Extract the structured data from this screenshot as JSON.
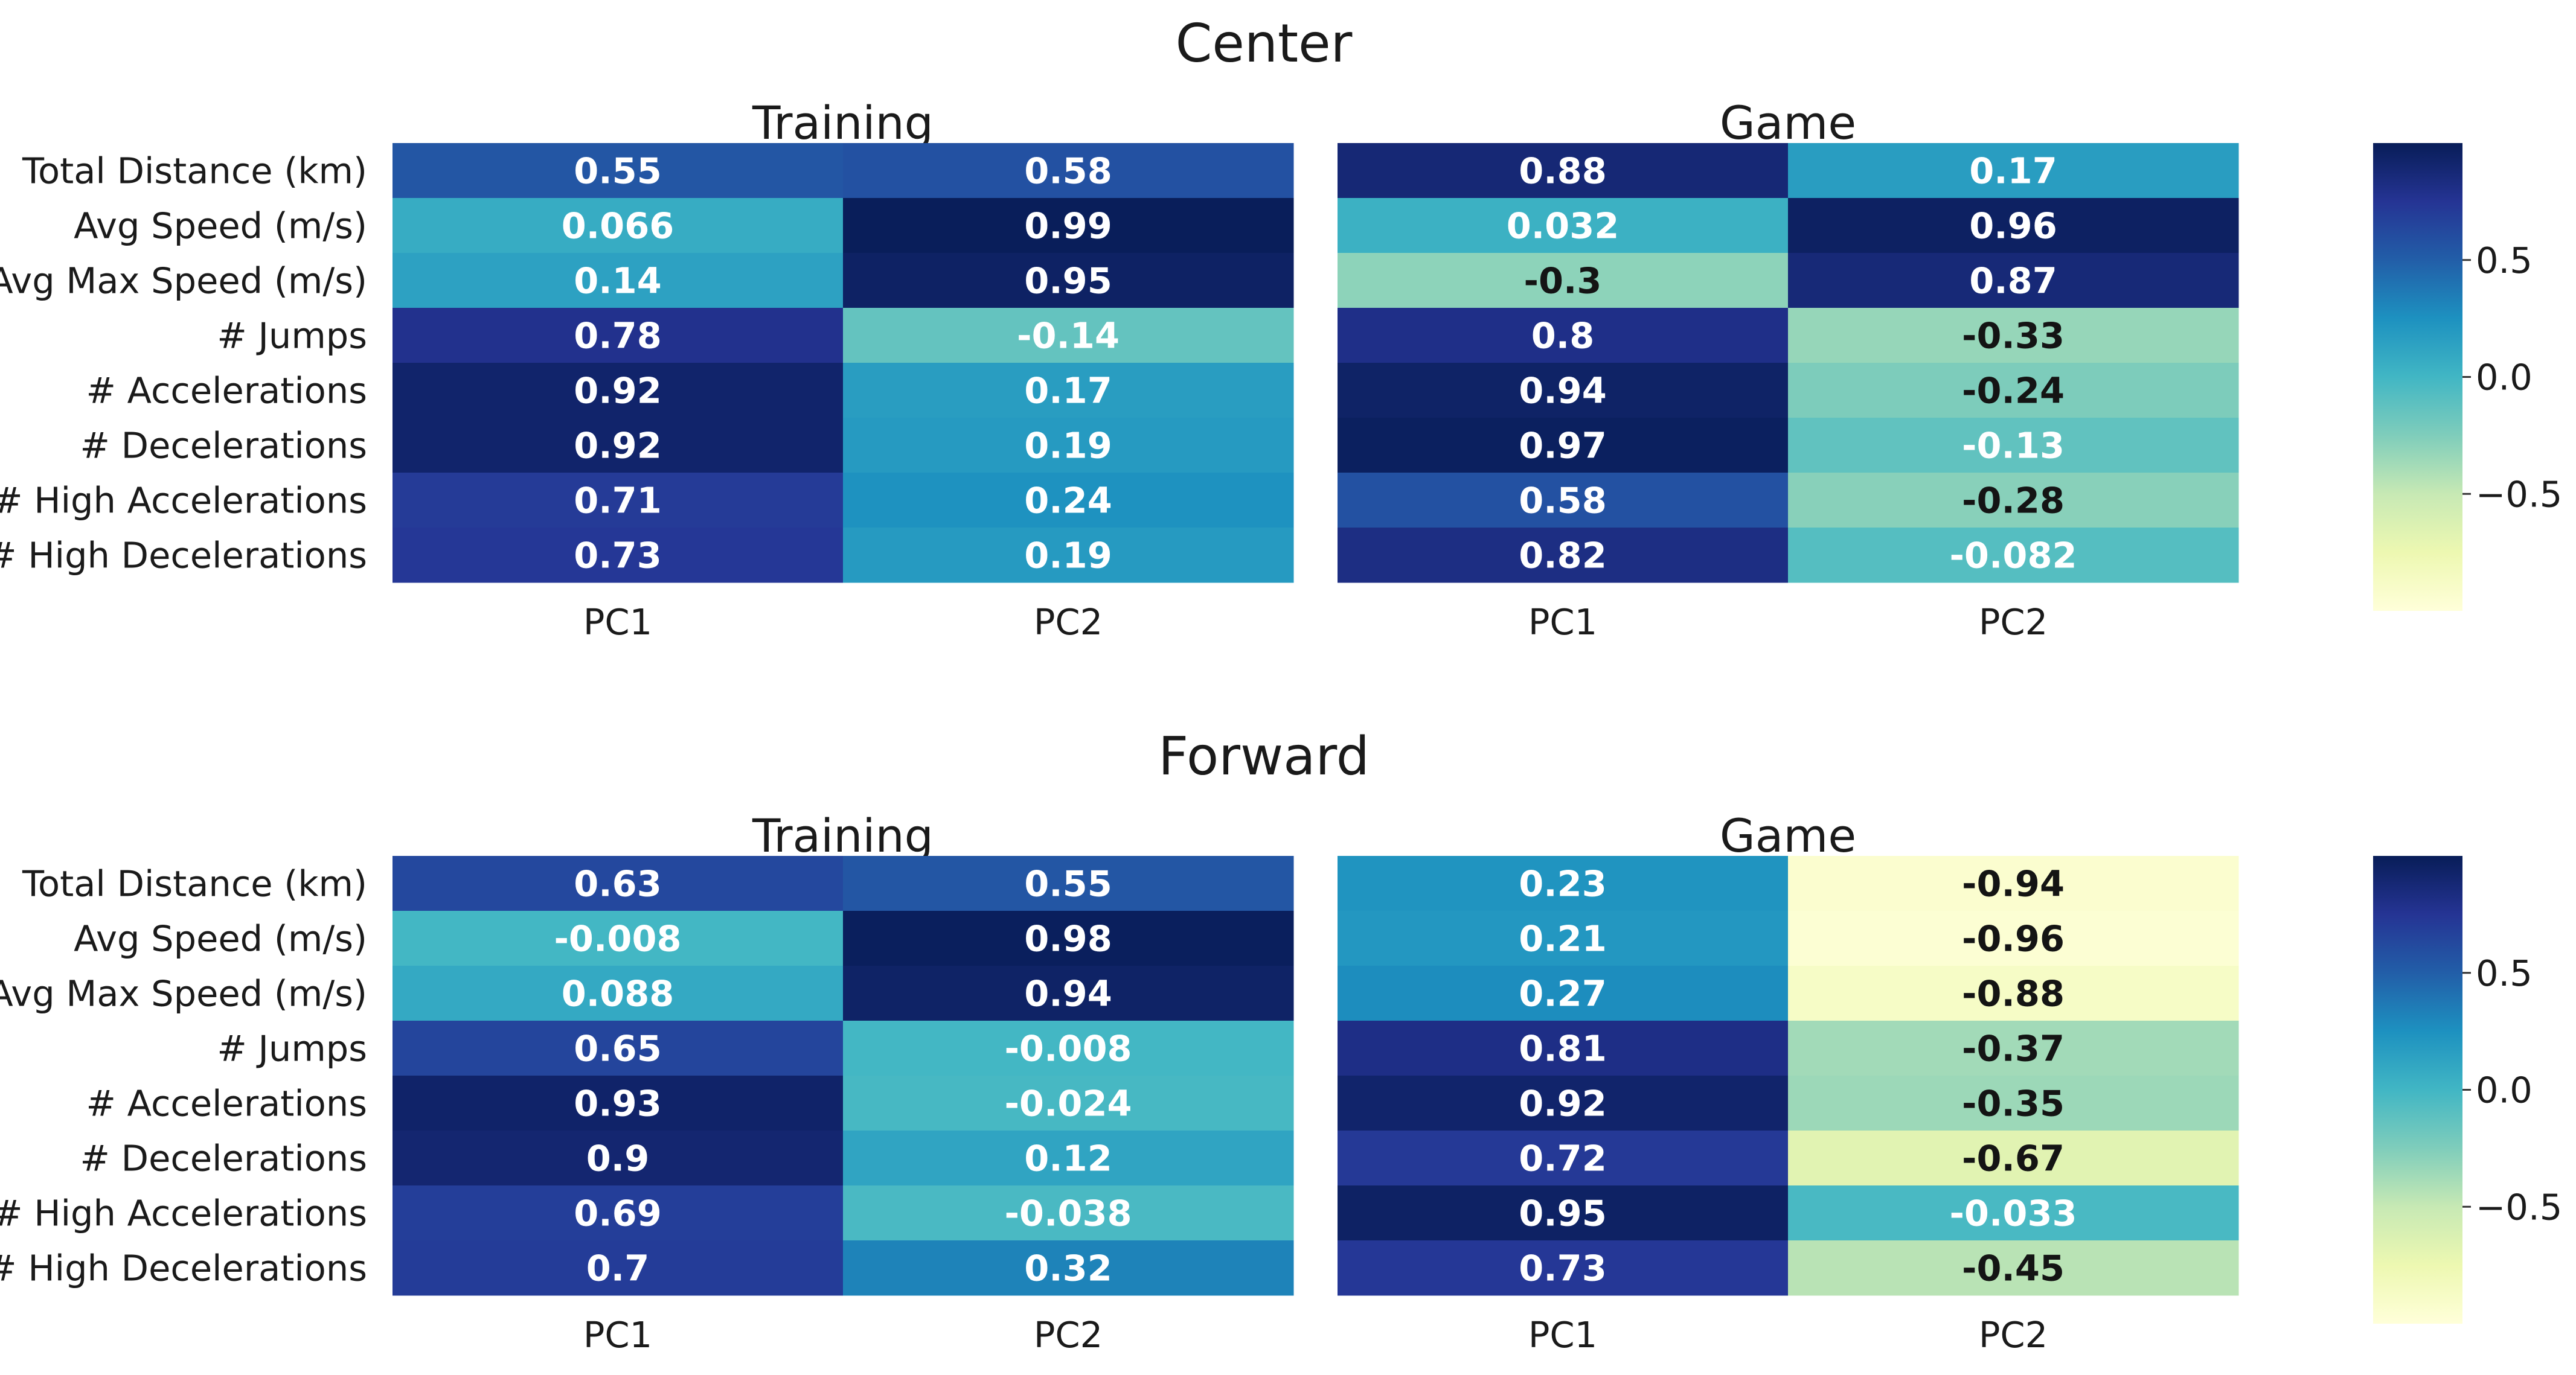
{
  "chart_data": {
    "type": "heatmap",
    "value_range": [
      -1,
      1
    ],
    "colormap": "YlGnBu",
    "colormap_stops": [
      "#ffffd9",
      "#edf8b1",
      "#c7e9b4",
      "#7fcdbb",
      "#41b6c4",
      "#1d91c0",
      "#225ea8",
      "#253494",
      "#081d58"
    ],
    "rows": [
      "Total Distance (km)",
      "Avg Speed (m/s)",
      "Avg Max Speed (m/s)",
      "# Jumps",
      "# Accelerations",
      "# Decelerations",
      "# High Accelerations",
      "# High Decelerations"
    ],
    "groups": [
      {
        "title": "Center",
        "colorbar_ticks": [
          {
            "value": 0.5,
            "label": "0.5"
          },
          {
            "value": 0.0,
            "label": "0.0"
          },
          {
            "value": -0.5,
            "label": "−0.5"
          }
        ],
        "panels": [
          {
            "title": "Training",
            "columns": [
              "PC1",
              "PC2"
            ],
            "values": [
              [
                0.55,
                0.58
              ],
              [
                0.066,
                0.99
              ],
              [
                0.14,
                0.95
              ],
              [
                0.78,
                -0.14
              ],
              [
                0.92,
                0.17
              ],
              [
                0.92,
                0.19
              ],
              [
                0.71,
                0.24
              ],
              [
                0.73,
                0.19
              ]
            ],
            "labels": [
              [
                "0.55",
                "0.58"
              ],
              [
                "0.066",
                "0.99"
              ],
              [
                "0.14",
                "0.95"
              ],
              [
                "0.78",
                "-0.14"
              ],
              [
                "0.92",
                "0.17"
              ],
              [
                "0.92",
                "0.19"
              ],
              [
                "0.71",
                "0.24"
              ],
              [
                "0.73",
                "0.19"
              ]
            ]
          },
          {
            "title": "Game",
            "columns": [
              "PC1",
              "PC2"
            ],
            "values": [
              [
                0.88,
                0.17
              ],
              [
                0.032,
                0.96
              ],
              [
                -0.3,
                0.87
              ],
              [
                0.8,
                -0.33
              ],
              [
                0.94,
                -0.24
              ],
              [
                0.97,
                -0.13
              ],
              [
                0.58,
                -0.28
              ],
              [
                0.82,
                -0.082
              ]
            ],
            "labels": [
              [
                "0.88",
                "0.17"
              ],
              [
                "0.032",
                "0.96"
              ],
              [
                "-0.3",
                "0.87"
              ],
              [
                "0.8",
                "-0.33"
              ],
              [
                "0.94",
                "-0.24"
              ],
              [
                "0.97",
                "-0.13"
              ],
              [
                "0.58",
                "-0.28"
              ],
              [
                "0.82",
                "-0.082"
              ]
            ]
          }
        ]
      },
      {
        "title": "Forward",
        "colorbar_ticks": [
          {
            "value": 0.5,
            "label": "0.5"
          },
          {
            "value": 0.0,
            "label": "0.0"
          },
          {
            "value": -0.5,
            "label": "−0.5"
          }
        ],
        "panels": [
          {
            "title": "Training",
            "columns": [
              "PC1",
              "PC2"
            ],
            "values": [
              [
                0.63,
                0.55
              ],
              [
                -0.008,
                0.98
              ],
              [
                0.088,
                0.94
              ],
              [
                0.65,
                -0.008
              ],
              [
                0.93,
                -0.024
              ],
              [
                0.9,
                0.12
              ],
              [
                0.69,
                -0.038
              ],
              [
                0.7,
                0.32
              ]
            ],
            "labels": [
              [
                "0.63",
                "0.55"
              ],
              [
                "-0.008",
                "0.98"
              ],
              [
                "0.088",
                "0.94"
              ],
              [
                "0.65",
                "-0.008"
              ],
              [
                "0.93",
                "-0.024"
              ],
              [
                "0.9",
                "0.12"
              ],
              [
                "0.69",
                "-0.038"
              ],
              [
                "0.7",
                "0.32"
              ]
            ]
          },
          {
            "title": "Game",
            "columns": [
              "PC1",
              "PC2"
            ],
            "values": [
              [
                0.23,
                -0.94
              ],
              [
                0.21,
                -0.96
              ],
              [
                0.27,
                -0.88
              ],
              [
                0.81,
                -0.37
              ],
              [
                0.92,
                -0.35
              ],
              [
                0.72,
                -0.67
              ],
              [
                0.95,
                -0.033
              ],
              [
                0.73,
                -0.45
              ]
            ],
            "labels": [
              [
                "0.23",
                "-0.94"
              ],
              [
                "0.21",
                "-0.96"
              ],
              [
                "0.27",
                "-0.88"
              ],
              [
                "0.81",
                "-0.37"
              ],
              [
                "0.92",
                "-0.35"
              ],
              [
                "0.72",
                "-0.67"
              ],
              [
                "0.95",
                "-0.033"
              ],
              [
                "0.73",
                "-0.45"
              ]
            ]
          }
        ]
      }
    ]
  }
}
